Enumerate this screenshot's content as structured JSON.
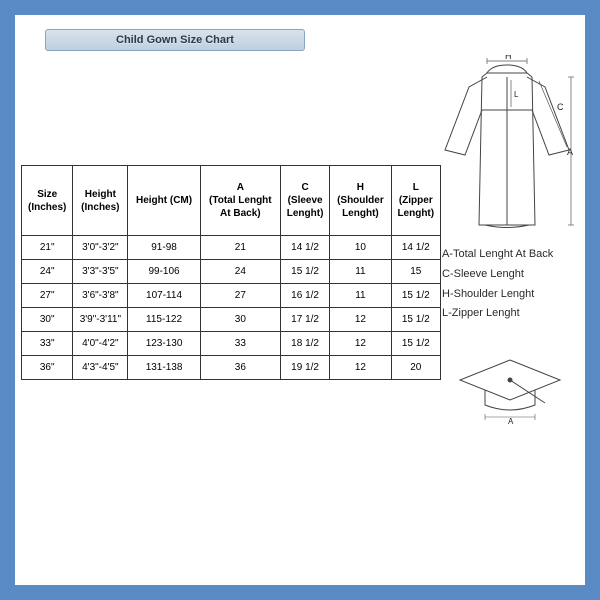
{
  "title": "Child Gown Size Chart",
  "columns": [
    "Size\n(Inches)",
    "Height\n(Inches)",
    "Height (CM)",
    "A\n(Total Lenght\nAt Back)",
    "C\n(Sleeve\nLenght)",
    "H\n(Shoulder\nLenght)",
    "L\n(Zipper\nLenght)"
  ],
  "rows": [
    [
      "21\"",
      "3'0\"-3'2\"",
      "91-98",
      "21",
      "14 1/2",
      "10",
      "14 1/2"
    ],
    [
      "24\"",
      "3'3\"-3'5\"",
      "99-106",
      "24",
      "15 1/2",
      "11",
      "15"
    ],
    [
      "27\"",
      "3'6\"-3'8\"",
      "107-114",
      "27",
      "16 1/2",
      "11",
      "15 1/2"
    ],
    [
      "30\"",
      "3'9\"-3'11\"",
      "115-122",
      "30",
      "17 1/2",
      "12",
      "15 1/2"
    ],
    [
      "33\"",
      "4'0\"-4'2\"",
      "123-130",
      "33",
      "18 1/2",
      "12",
      "15 1/2"
    ],
    [
      "36\"",
      "4'3\"-4'5\"",
      "131-138",
      "36",
      "19 1/2",
      "12",
      "20"
    ]
  ],
  "legend": [
    "A-Total Lenght At Back",
    "C-Sleeve Lenght",
    "H-Shoulder Lenght",
    "L-Zipper Lenght"
  ],
  "style": {
    "page_bg": "#5a8bc4",
    "inner_bg": "#ffffff",
    "title_gradient_top": "#d8e2ed",
    "title_gradient_bottom": "#c0d0e0",
    "title_border": "#8aa5c4",
    "rule_color": "#3a6ca5",
    "table_border": "#333333",
    "text_color": "#2a2a2a",
    "header_fontsize": 10,
    "cell_fontsize": 10,
    "legend_fontsize": 11,
    "title_fontsize": 11,
    "diagram_stroke": "#444444",
    "diagram_label_color": "#222222"
  },
  "diagram_labels": {
    "H": "H",
    "C": "C",
    "A": "A",
    "L": "L",
    "cap_A": "A"
  }
}
